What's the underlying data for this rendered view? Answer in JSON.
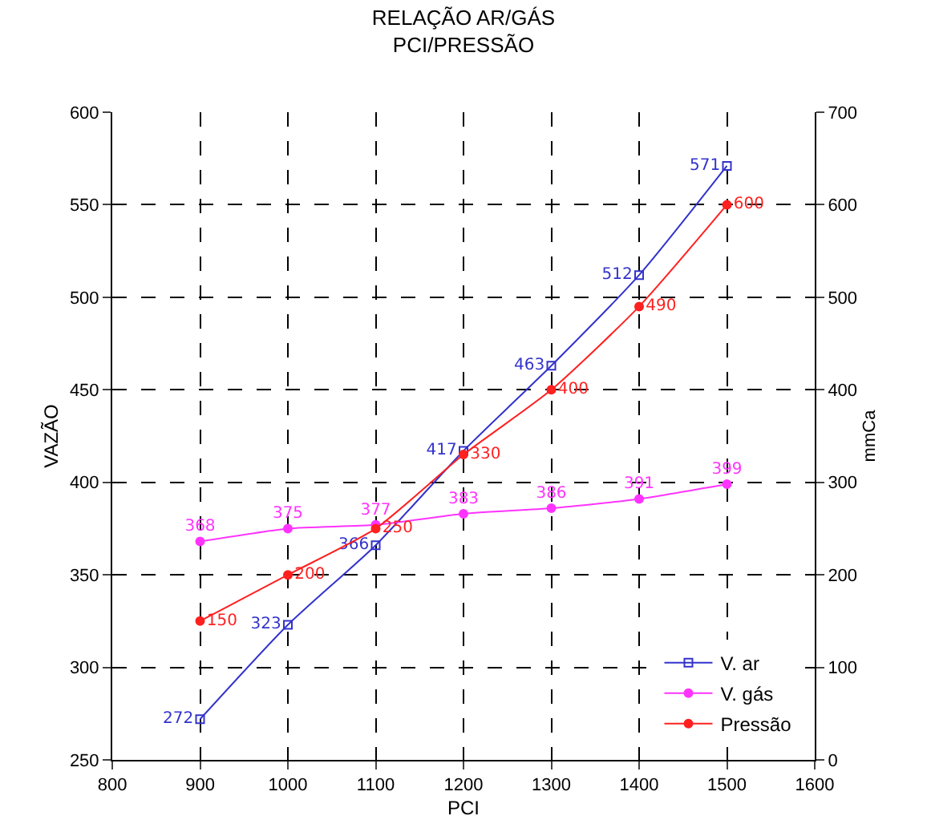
{
  "chart_data": {
    "type": "line",
    "title": "RELAÇÃO AR/GÁS\nPCI/PRESSÃO",
    "xlabel": "PCI",
    "ylabel": "VAZÃO",
    "y2label": "mmCa",
    "x": [
      900,
      1000,
      1100,
      1200,
      1300,
      1400,
      1500
    ],
    "series": [
      {
        "name": "V. ar",
        "color": "#3333cc",
        "marker": "square",
        "values": [
          272,
          323,
          366,
          417,
          463,
          512,
          571
        ]
      },
      {
        "name": "V. gás",
        "color": "#ff33ff",
        "marker": "circle",
        "values": [
          368,
          375,
          377,
          383,
          386,
          391,
          399
        ]
      },
      {
        "name": "Pressão",
        "color": "#ff2020",
        "marker": "circle",
        "axis": "y2",
        "values": [
          150,
          200,
          250,
          330,
          400,
          490,
          600
        ]
      }
    ],
    "xlim": [
      800,
      1600
    ],
    "xticks": [
      800,
      900,
      1000,
      1100,
      1200,
      1300,
      1400,
      1500,
      1600
    ],
    "ylim": [
      250,
      600
    ],
    "yticks": [
      250,
      300,
      350,
      400,
      450,
      500,
      550,
      600
    ],
    "y2lim": [
      0,
      700
    ],
    "y2ticks": [
      0,
      100,
      200,
      300,
      400,
      500,
      600,
      700
    ],
    "grid": true,
    "legend": "bottom right",
    "data_labels": true,
    "line_style": "solid"
  }
}
